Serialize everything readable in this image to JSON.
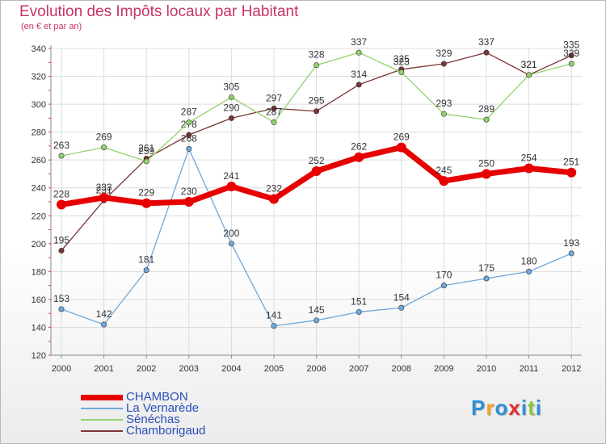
{
  "chart_data": {
    "type": "line",
    "title": "Evolution des Impôts locaux par Habitant",
    "subtitle": "(en € et par an)",
    "x": [
      "2000",
      "2001",
      "2002",
      "2003",
      "2004",
      "2005",
      "2006",
      "2007",
      "2008",
      "2009",
      "2010",
      "2011",
      "2012"
    ],
    "yticks": [
      120,
      140,
      160,
      180,
      200,
      220,
      240,
      260,
      280,
      300,
      320,
      340
    ],
    "ylim": [
      120,
      340
    ],
    "grid": true,
    "series": [
      {
        "name": "CHAMBON",
        "color": "#e60000",
        "values": [
          228,
          233,
          229,
          230,
          241,
          232,
          252,
          262,
          269,
          245,
          250,
          254,
          251
        ],
        "labels": [
          "228",
          "233",
          "229",
          "230",
          "241",
          "232",
          "252",
          "262",
          "269",
          "245",
          "250",
          "254",
          "251"
        ]
      },
      {
        "name": "La Vernarède",
        "color": "#6fa8dc",
        "values": [
          153,
          142,
          181,
          268,
          200,
          141,
          145,
          151,
          154,
          170,
          175,
          180,
          193
        ],
        "labels": [
          "153",
          "142",
          "181",
          "268",
          "200",
          "141",
          "145",
          "151",
          "154",
          "170",
          "175",
          "180",
          "193"
        ]
      },
      {
        "name": "Sénéchas",
        "color": "#8fd36a",
        "values": [
          263,
          269,
          259,
          287,
          305,
          287,
          328,
          337,
          323,
          293,
          289,
          321,
          329
        ],
        "labels": [
          "263",
          "269",
          "259",
          "287",
          "305",
          "287",
          "328",
          "337",
          "323",
          "293",
          "289",
          "321",
          "329"
        ]
      },
      {
        "name": "Chamborigaud",
        "color": "#7a3535",
        "values": [
          195,
          231,
          261,
          278,
          290,
          297,
          295,
          314,
          325,
          329,
          337,
          321,
          335
        ],
        "labels": [
          "195",
          "231",
          "261",
          "278",
          "290",
          "297",
          "295",
          "314",
          "325",
          "329",
          "337",
          "321",
          "335"
        ]
      }
    ],
    "legend_position": "bottom-left"
  },
  "logo": {
    "letters": [
      "P",
      "r",
      "o",
      "x",
      "i",
      "t",
      "i"
    ],
    "colors": [
      "#2d8fd8",
      "#f0a020",
      "#2d8fd8",
      "#e03030",
      "#2d8fd8",
      "#8cc63f",
      "#2d8fd8"
    ]
  }
}
